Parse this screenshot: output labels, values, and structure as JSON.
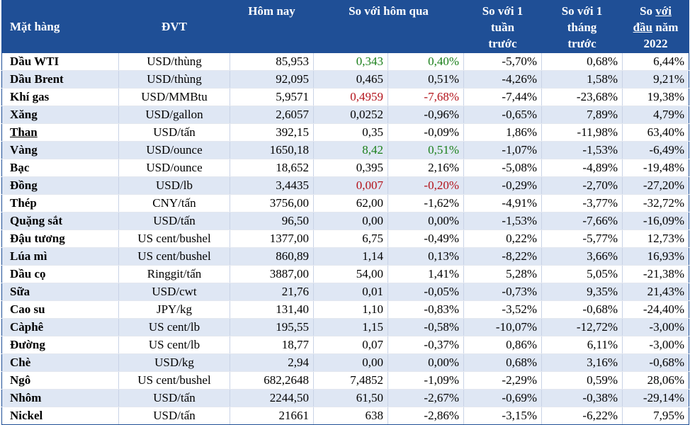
{
  "headers": {
    "item": "Mặt hàng",
    "unit": "ĐVT",
    "today": "Hôm nay",
    "vs_yesterday": "So với hôm qua",
    "vs_week_1": "So với 1",
    "vs_week_2": "tuần",
    "vs_week_3": "trước",
    "vs_month_1": "So với 1",
    "vs_month_2": "tháng",
    "vs_month_3": "trước",
    "vs_ytd_1a": "So ",
    "vs_ytd_1b": "với",
    "vs_ytd_2a": "đầu",
    "vs_ytd_2b": " năm",
    "vs_ytd_3": "2022"
  },
  "colors": {
    "header_bg": "#1f4f96",
    "stripe": "#dfe7f4",
    "up": "#1a7f1a",
    "down": "#b3121a"
  },
  "rows": [
    {
      "name": "Dầu WTI",
      "unit": "USD/thùng",
      "today": "85,953",
      "chg": "0,343",
      "pct": "0,40%",
      "week": "-5,70%",
      "month": "0,68%",
      "ytd": "6,44%",
      "color": "green"
    },
    {
      "name": "Dầu Brent",
      "unit": "USD/thùng",
      "today": "92,095",
      "chg": "0,465",
      "pct": "0,51%",
      "week": "-4,26%",
      "month": "1,58%",
      "ytd": "9,21%",
      "color": ""
    },
    {
      "name": "Khí gas",
      "unit": "USD/MMBtu",
      "today": "5,9571",
      "chg": "0,4959",
      "pct": "-7,68%",
      "week": "-7,44%",
      "month": "-23,68%",
      "ytd": "19,38%",
      "color": "red"
    },
    {
      "name": "Xăng",
      "unit": "USD/gallon",
      "today": "2,6057",
      "chg": "0,0252",
      "pct": "-0,96%",
      "week": "-0,65%",
      "month": "7,89%",
      "ytd": "4,79%",
      "color": ""
    },
    {
      "name": "Than",
      "unit": "USD/tấn",
      "today": "392,15",
      "chg": "0,35",
      "pct": "-0,09%",
      "week": "1,86%",
      "month": "-11,98%",
      "ytd": "63,40%",
      "color": "",
      "underline": true
    },
    {
      "name": "Vàng",
      "unit": "USD/ounce",
      "today": "1650,18",
      "chg": "8,42",
      "pct": "0,51%",
      "week": "-1,07%",
      "month": "-1,53%",
      "ytd": "-6,49%",
      "color": "green"
    },
    {
      "name": "Bạc",
      "unit": "USD/ounce",
      "today": "18,652",
      "chg": "0,395",
      "pct": "2,16%",
      "week": "-5,08%",
      "month": "-4,89%",
      "ytd": "-19,48%",
      "color": ""
    },
    {
      "name": "Đồng",
      "unit": "USD/lb",
      "today": "3,4435",
      "chg": "0,007",
      "pct": "-0,20%",
      "week": "-0,29%",
      "month": "-2,70%",
      "ytd": "-27,20%",
      "color": "red"
    },
    {
      "name": "Thép",
      "unit": "CNY/tấn",
      "today": "3756,00",
      "chg": "62,00",
      "pct": "-1,62%",
      "week": "-4,91%",
      "month": "-3,77%",
      "ytd": "-32,72%",
      "color": ""
    },
    {
      "name": "Quặng sắt",
      "unit": "USD/tấn",
      "today": "96,50",
      "chg": "0,00",
      "pct": "0,00%",
      "week": "-1,53%",
      "month": "-7,66%",
      "ytd": "-16,09%",
      "color": ""
    },
    {
      "name": "Đậu tương",
      "unit": "US cent/bushel",
      "today": "1377,00",
      "chg": "6,75",
      "pct": "-0,49%",
      "week": "0,22%",
      "month": "-5,77%",
      "ytd": "12,73%",
      "color": ""
    },
    {
      "name": "Lúa mì",
      "unit": "US cent/bushel",
      "today": "860,89",
      "chg": "1,14",
      "pct": "0,13%",
      "week": "-8,22%",
      "month": "3,66%",
      "ytd": "16,93%",
      "color": ""
    },
    {
      "name": "Dầu cọ",
      "unit": "Ringgit/tấn",
      "today": "3887,00",
      "chg": "54,00",
      "pct": "1,41%",
      "week": "5,28%",
      "month": "5,05%",
      "ytd": "-21,38%",
      "color": ""
    },
    {
      "name": "Sữa",
      "unit": "USD/cwt",
      "today": "21,76",
      "chg": "0,01",
      "pct": "-0,05%",
      "week": "-0,73%",
      "month": "9,35%",
      "ytd": "21,43%",
      "color": ""
    },
    {
      "name": "Cao su",
      "unit": "JPY/kg",
      "today": "131,40",
      "chg": "1,10",
      "pct": "-0,83%",
      "week": "-3,52%",
      "month": "-0,68%",
      "ytd": "-24,40%",
      "color": ""
    },
    {
      "name": "Càphê",
      "unit": "US cent/lb",
      "today": "195,55",
      "chg": "1,15",
      "pct": "-0,58%",
      "week": "-10,07%",
      "month": "-12,72%",
      "ytd": "-3,00%",
      "color": ""
    },
    {
      "name": "Đường",
      "unit": "US cent/lb",
      "today": "18,77",
      "chg": "0,07",
      "pct": "-0,37%",
      "week": "0,86%",
      "month": "6,11%",
      "ytd": "-3,00%",
      "color": ""
    },
    {
      "name": "Chè",
      "unit": "USD/kg",
      "today": "2,94",
      "chg": "0,00",
      "pct": "0,00%",
      "week": "0,68%",
      "month": "3,16%",
      "ytd": "-0,68%",
      "color": ""
    },
    {
      "name": "Ngô",
      "unit": "US cent/bushel",
      "today": "682,2648",
      "chg": "7,4852",
      "pct": "-1,09%",
      "week": "-2,29%",
      "month": "0,59%",
      "ytd": "28,06%",
      "color": ""
    },
    {
      "name": "Nhôm",
      "unit": "USD/tấn",
      "today": "2244,50",
      "chg": "61,50",
      "pct": "-2,67%",
      "week": "-0,69%",
      "month": "-0,38%",
      "ytd": "-29,14%",
      "color": ""
    },
    {
      "name": "Nickel",
      "unit": "USD/tấn",
      "today": "21661",
      "chg": "638",
      "pct": "-2,86%",
      "week": "-3,15%",
      "month": "-6,22%",
      "ytd": "7,95%",
      "color": ""
    }
  ]
}
